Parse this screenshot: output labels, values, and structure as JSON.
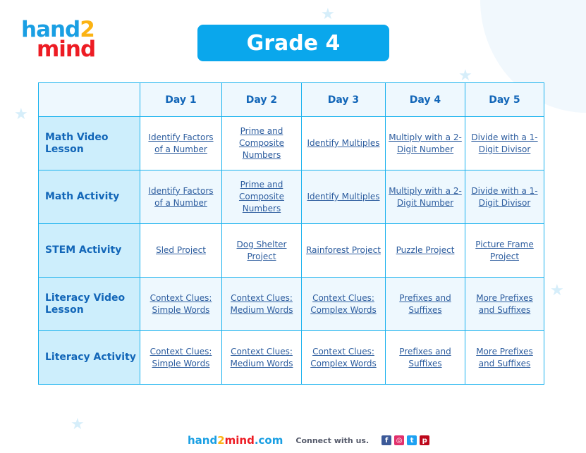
{
  "logo": {
    "text": "hand2mind"
  },
  "title": "Grade 4",
  "table": {
    "headers": [
      "",
      "Day 1",
      "Day 2",
      "Day 3",
      "Day 4",
      "Day 5"
    ],
    "rows": [
      {
        "label": "Math Video Lesson",
        "cells": [
          "Identify Factors of a Number",
          "Prime and Composite Numbers",
          "Identify Multiples",
          "Multiply with a 2-Digit Number",
          "Divide with a 1-Digit Divisor"
        ]
      },
      {
        "label": "Math Activity",
        "cells": [
          "Identify Factors of a Number",
          "Prime and Composite Numbers",
          "Identify Multiples",
          "Multiply with a 2-Digit Number",
          "Divide with a 1-Digit Divisor"
        ]
      },
      {
        "label": "STEM Activity",
        "cells": [
          "Sled Project",
          "Dog Shelter Project",
          "Rainforest Project",
          "Puzzle Project",
          "Picture Frame Project"
        ]
      },
      {
        "label": "Literacy Video Lesson",
        "cells": [
          "Context Clues: Simple Words",
          "Context Clues: Medium Words",
          "Context Clues: Complex Words",
          "Prefixes and Suffixes",
          "More Prefixes and Suffixes"
        ]
      },
      {
        "label": "Literacy Activity",
        "cells": [
          "Context Clues: Simple Words",
          "Context Clues: Medium Words",
          "Context Clues: Complex Words",
          "Prefixes and Suffixes",
          "More Prefixes and Suffixes"
        ]
      }
    ]
  },
  "footer": {
    "site_a": "hand",
    "site_b": "2",
    "site_c": "mind",
    "site_d": ".com",
    "connect": "Connect with us.",
    "social": [
      {
        "icon": "facebook-icon",
        "glyph": "f",
        "color": "#3b5998"
      },
      {
        "icon": "instagram-icon",
        "glyph": "◎",
        "color": "#e1306c"
      },
      {
        "icon": "twitter-icon",
        "glyph": "t",
        "color": "#1da1f2"
      },
      {
        "icon": "pinterest-icon",
        "glyph": "p",
        "color": "#bd081c"
      }
    ]
  },
  "colors": {
    "accent": "#0aa7ec",
    "border": "#1ab2ee",
    "text": "#1266b8"
  }
}
